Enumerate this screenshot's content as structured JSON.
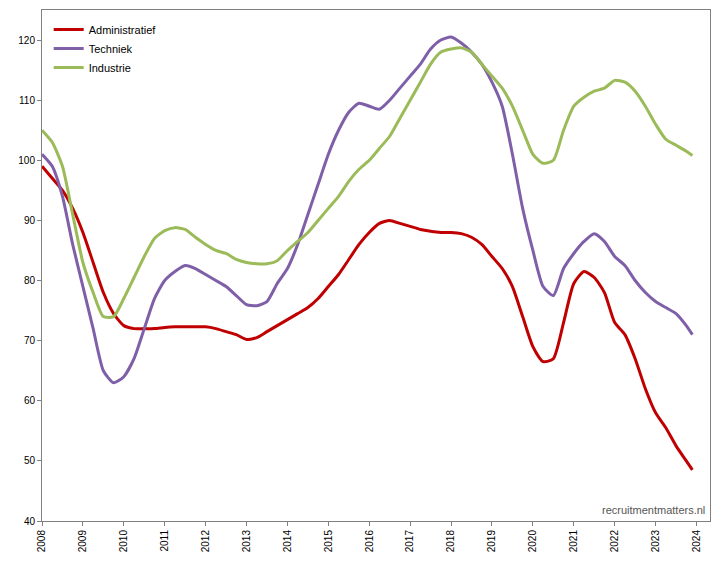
{
  "chart_data": {
    "type": "line",
    "x": [
      2008.0,
      2008.25,
      2008.5,
      2008.75,
      2009.0,
      2009.25,
      2009.5,
      2009.75,
      2010.0,
      2010.25,
      2010.5,
      2010.75,
      2011.0,
      2011.25,
      2011.5,
      2011.75,
      2012.0,
      2012.25,
      2012.5,
      2012.75,
      2013.0,
      2013.25,
      2013.5,
      2013.75,
      2014.0,
      2014.25,
      2014.5,
      2014.75,
      2015.0,
      2015.25,
      2015.5,
      2015.75,
      2016.0,
      2016.25,
      2016.5,
      2016.75,
      2017.0,
      2017.25,
      2017.5,
      2017.75,
      2018.0,
      2018.25,
      2018.5,
      2018.75,
      2019.0,
      2019.25,
      2019.5,
      2019.75,
      2020.0,
      2020.25,
      2020.5,
      2020.75,
      2021.0,
      2021.25,
      2021.5,
      2021.75,
      2022.0,
      2022.25,
      2022.5,
      2022.75,
      2023.0,
      2023.25,
      2023.5,
      2023.75,
      2023.9
    ],
    "series": [
      {
        "name": "Administratief",
        "color": "#c00000",
        "values": [
          99,
          97,
          95,
          92,
          88,
          83,
          78,
          74.5,
          72.5,
          72,
          72,
          72,
          72.2,
          72.3,
          72.3,
          72.3,
          72.3,
          72,
          71.5,
          71,
          70.2,
          70.5,
          71.5,
          72.5,
          73.5,
          74.5,
          75.5,
          77,
          79,
          81,
          83.5,
          86,
          88,
          89.5,
          90,
          89.5,
          89,
          88.5,
          88.2,
          88,
          88,
          87.8,
          87.2,
          86,
          84,
          82,
          79,
          74,
          69,
          66.5,
          67,
          73,
          79.5,
          81.5,
          80.5,
          78,
          73,
          71,
          67,
          62,
          58,
          55.5,
          52.5,
          50,
          48.5
        ]
      },
      {
        "name": "Techniek",
        "color": "#7f5fa8",
        "values": [
          101,
          99,
          94,
          86,
          79,
          72,
          65,
          63,
          64,
          67,
          72,
          77,
          80,
          81.5,
          82.5,
          82,
          81,
          80,
          79,
          77.5,
          76,
          75.8,
          76.5,
          79.5,
          82,
          86,
          91,
          96,
          101,
          105,
          108,
          109.5,
          109,
          108.5,
          110,
          112,
          114,
          116,
          118.5,
          120,
          120.5,
          119.5,
          118,
          116,
          113,
          109,
          101,
          92,
          85,
          79,
          77.5,
          82,
          84.5,
          86.5,
          87.8,
          86.5,
          84,
          82.5,
          80,
          78,
          76.5,
          75.5,
          74.5,
          72.5,
          71
        ]
      },
      {
        "name": "Industrie",
        "color": "#9bbb59",
        "values": [
          105,
          103,
          99,
          91,
          83,
          78,
          74,
          74,
          77,
          80.5,
          84,
          87,
          88.3,
          88.8,
          88.5,
          87.2,
          86,
          85,
          84.5,
          83.5,
          83,
          82.8,
          82.8,
          83.3,
          85,
          86.5,
          88,
          90,
          92,
          94,
          96.5,
          98.5,
          100,
          102,
          104,
          107,
          110,
          113,
          116,
          118,
          118.5,
          118.7,
          118,
          116,
          114,
          112,
          109,
          105,
          101,
          99.5,
          100,
          105,
          109,
          110.5,
          111.5,
          112,
          113.3,
          113,
          111.5,
          109,
          106,
          103.5,
          102.5,
          101.5,
          100.8
        ]
      }
    ],
    "xlim": [
      2008,
      2024.33
    ],
    "xticks": [
      2008,
      2009,
      2010,
      2011,
      2012,
      2013,
      2014,
      2015,
      2016,
      2017,
      2018,
      2019,
      2020,
      2021,
      2022,
      2023,
      2024
    ],
    "ylim": [
      40,
      125
    ],
    "yticks": [
      40,
      50,
      60,
      70,
      80,
      90,
      100,
      110,
      120
    ],
    "grid": false,
    "legend": "upper left",
    "annotations": [
      "recruitmentmatters.nl"
    ]
  }
}
